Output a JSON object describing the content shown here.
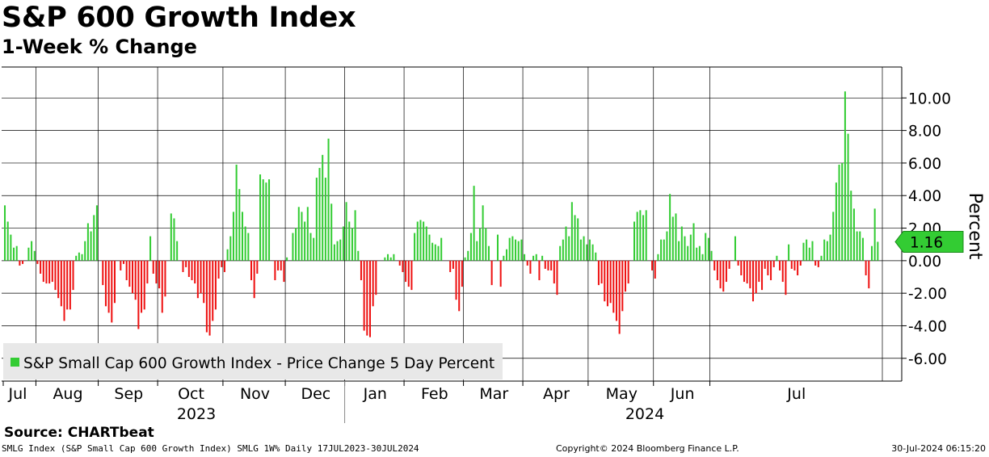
{
  "header": {
    "title": "S&P 600 Growth Index",
    "subtitle": "1-Week % Change"
  },
  "chart_data": {
    "type": "bar",
    "title": "S&P 600 Growth Index",
    "subtitle": "1-Week % Change",
    "ylabel": "Percent",
    "ylim": [
      -7.4,
      11.9
    ],
    "yticks": [
      10,
      8,
      6,
      4,
      2,
      0,
      -2,
      -4,
      -6
    ],
    "ytick_labels": [
      "10.00",
      "8.00",
      "6.00",
      "4.00",
      "2.00",
      "0.00",
      "-2.00",
      "-4.00",
      "-6.00"
    ],
    "grid": true,
    "legend": {
      "label": "S&P Small Cap 600 Growth Index - Price Change 5 Day Percent",
      "position": "bottom-left"
    },
    "last_value_label": "1.16",
    "last_value": 1.16,
    "months": [
      {
        "label": "Jul",
        "index": 0
      },
      {
        "label": "Aug",
        "index": 11
      },
      {
        "label": "Sep",
        "index": 32
      },
      {
        "label": "Oct",
        "index": 52
      },
      {
        "label": "Nov",
        "index": 74
      },
      {
        "label": "Dec",
        "index": 95
      },
      {
        "label": "Jan",
        "index": 115
      },
      {
        "label": "Feb",
        "index": 135
      },
      {
        "label": "Mar",
        "index": 155
      },
      {
        "label": "Apr",
        "index": 175
      },
      {
        "label": "May",
        "index": 197
      },
      {
        "label": "Jun",
        "index": 219
      },
      {
        "label": "Jul",
        "index": 238
      }
    ],
    "years": [
      {
        "label": "2023",
        "start_index": 0,
        "end_index": 115
      },
      {
        "label": "2024",
        "start_index": 115,
        "end_index": 260
      }
    ],
    "year_separator_index": 115,
    "series": [
      {
        "name": "S&P Small Cap 600 Growth Index - Price Change 5 Day Percent",
        "positive_color": "#33cc33",
        "negative_color": "#ee1111",
        "values": [
          3.4,
          2.4,
          1.6,
          0.8,
          0.9,
          -0.3,
          -0.2,
          0,
          0.8,
          1.2,
          0.6,
          -0.2,
          -0.8,
          -1.3,
          -1.4,
          -1.4,
          -1.3,
          -1.8,
          -2.3,
          -2.8,
          -3.7,
          -3.0,
          -3.0,
          -1.8,
          0.3,
          0.5,
          0.4,
          1.2,
          2.3,
          1.8,
          2.8,
          3.4,
          0,
          -1.5,
          -2.8,
          -3.2,
          -3.8,
          -2.6,
          0,
          -0.6,
          -0.2,
          -1.2,
          -1.6,
          -2.0,
          -2.4,
          -4.2,
          -3.2,
          -3.0,
          -1.4,
          1.5,
          -0.8,
          -1.4,
          -1.7,
          -3.2,
          -2.2,
          0,
          2.9,
          2.6,
          1.2,
          0,
          -0.7,
          -0.4,
          -1.0,
          -1.2,
          -1.4,
          -2.3,
          -2.0,
          -2.6,
          -4.4,
          -4.6,
          -3.7,
          -3.0,
          -1.1,
          -0.4,
          -0.7,
          0.7,
          1.5,
          3.0,
          5.9,
          4.4,
          3.0,
          2.1,
          1.7,
          -1.2,
          -2.3,
          -0.8,
          5.3,
          5.0,
          4.8,
          5.0,
          0,
          -1.2,
          -0.6,
          -0.6,
          -1.3,
          0.2,
          0,
          1.7,
          2.0,
          3.3,
          3.0,
          2.4,
          3.3,
          1.7,
          1.4,
          5.1,
          5.7,
          6.5,
          5.1,
          7.5,
          3.5,
          1.0,
          1.2,
          1.3,
          2.1,
          3.6,
          2.4,
          2.0,
          3.1,
          0.6,
          -1.2,
          -4.3,
          -4.6,
          -4.7,
          -2.8,
          -2.1,
          0,
          0,
          0.2,
          0.4,
          0.2,
          0.4,
          0,
          -0.3,
          -0.7,
          -1.3,
          -1.6,
          -1.8,
          1.7,
          2.4,
          2.5,
          2.4,
          2.1,
          1.6,
          1.1,
          1.0,
          0.9,
          1.4,
          0,
          0,
          -0.7,
          -0.5,
          -2.4,
          -3.1,
          -1.6,
          0.2,
          0.6,
          1.7,
          4.6,
          1.2,
          2.0,
          3.4,
          2.0,
          0.9,
          -1.5,
          0,
          1.6,
          -1.6,
          0.3,
          0.7,
          1.4,
          1.5,
          1.3,
          1.2,
          1.3,
          0.4,
          -0.3,
          -0.8,
          0.3,
          0.4,
          -1.2,
          0.3,
          -0.5,
          -0.6,
          -0.6,
          -1.4,
          -2.1,
          0.9,
          1.3,
          2.1,
          1.5,
          3.6,
          2.8,
          2.6,
          1.3,
          1.5,
          1.0,
          1.3,
          1.0,
          0.5,
          -1.5,
          -1.4,
          -2.5,
          -2.8,
          -2.6,
          -3.2,
          -3.7,
          -4.5,
          -3.1,
          -1.9,
          -1.4,
          0,
          2.4,
          3.0,
          3.1,
          2.8,
          3.1,
          0,
          -0.6,
          -1.1,
          0.4,
          1.3,
          1.3,
          1.8,
          4.1,
          2.7,
          2.9,
          1.2,
          2.1,
          1.5,
          0.9,
          1.6,
          2.3,
          0.8,
          0.9,
          0.4,
          1.7,
          1.4,
          0.6,
          -0.6,
          -1.2,
          -1.7,
          -1.9,
          -1.3,
          -0.5,
          0,
          1.5,
          -0.3,
          -0.9,
          -1.3,
          -1.4,
          -1.7,
          -2.5,
          -2.0,
          -1.3,
          -1.8,
          -0.5,
          -0.9,
          -1.2,
          -0.4,
          0.3,
          -0.6,
          -1.3,
          -2.1,
          1.0,
          -0.5,
          -0.6,
          -0.9,
          -0.3,
          1.1,
          1.3,
          0.8,
          1.2,
          -0.3,
          -0.4,
          0.3,
          1.3,
          1.2,
          1.6,
          3.0,
          4.8,
          5.9,
          6.0,
          10.4,
          7.8,
          4.3,
          3.2,
          1.8,
          1.8,
          1.4,
          -0.9,
          -1.7,
          0.9,
          3.2,
          1.16
        ]
      }
    ]
  },
  "footer": {
    "source": "Source:  CHARTbeat",
    "left": "SMLG Index (S&P Small Cap 600 Growth Index) SMLG 1W%  Daily 17JUL2023-30JUL2024",
    "middle": "Copyright© 2024 Bloomberg Finance L.P.",
    "right": "30-Jul-2024 06:15:20"
  }
}
